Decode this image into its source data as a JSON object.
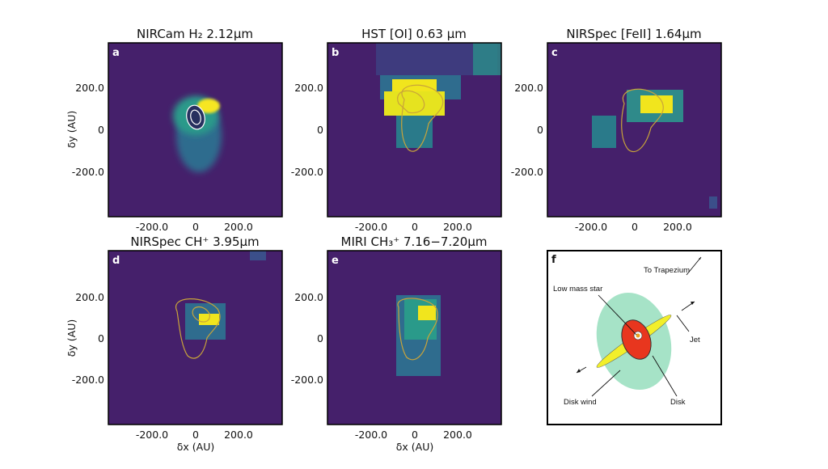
{
  "panels": [
    {
      "letter": "a",
      "title": "NIRCam H₂ 2.12µm"
    },
    {
      "letter": "b",
      "title": "HST [OI] 0.63 µm"
    },
    {
      "letter": "c",
      "title": "NIRSpec [FeII] 1.64µm"
    },
    {
      "letter": "d",
      "title": "NIRSpec CH⁺ 3.95µm"
    },
    {
      "letter": "e",
      "title": "MIRI CH₃⁺ 7.16−7.20µm"
    },
    {
      "letter": "f",
      "title": ""
    }
  ],
  "axes": {
    "xlabel": "δx (AU)",
    "ylabel": "δy (AU)",
    "ticks": [
      "-200.0",
      "0",
      "200.0"
    ],
    "yticks": [
      "200.0",
      "0",
      "-200.0"
    ]
  },
  "diagram": {
    "to_trapezium": "To Trapezium",
    "low_mass_star": "Low mass star",
    "jet": "Jet",
    "disk_wind": "Disk wind",
    "disk": "Disk"
  },
  "colors": {
    "background": "#45206b",
    "contour_a": "#ffffff",
    "contour": "#c9a43a"
  }
}
